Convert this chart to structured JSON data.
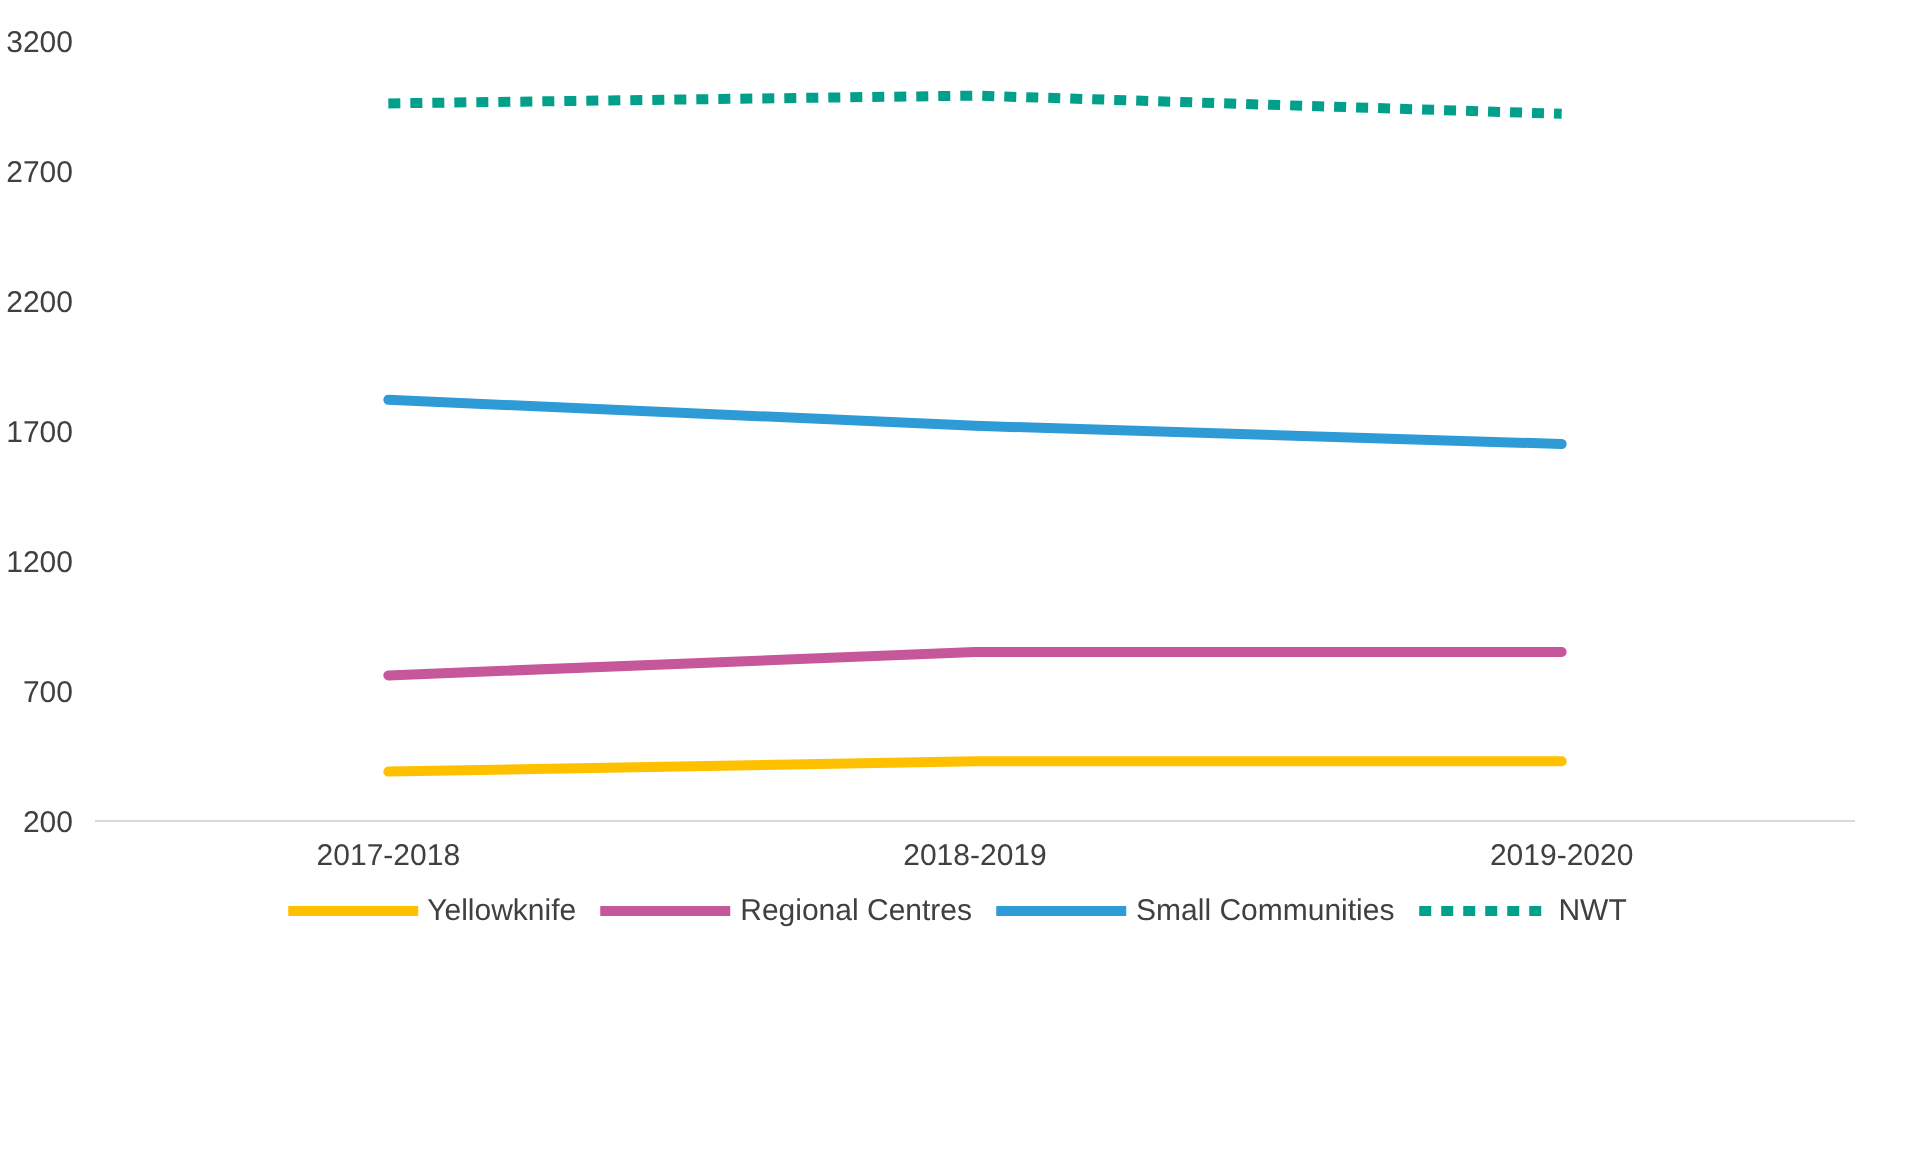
{
  "chart_data": {
    "type": "line",
    "categories": [
      "2017-2018",
      "2018-2019",
      "2019-2020"
    ],
    "series": [
      {
        "name": "Yellowknife",
        "color": "#ffc000",
        "values": [
          390,
          430,
          430
        ]
      },
      {
        "name": "Regional Centres",
        "color": "#c5579a",
        "values": [
          760,
          850,
          850
        ]
      },
      {
        "name": "Small Communities",
        "color": "#2e9ad6",
        "values": [
          1820,
          1720,
          1650
        ]
      },
      {
        "name": "NWT",
        "color": "#00a08a",
        "values": [
          2960,
          2990,
          2920
        ],
        "line_style": "dotted"
      }
    ],
    "ylim": [
      200,
      3200
    ],
    "yticks": [
      200,
      700,
      1200,
      1700,
      2200,
      2700,
      3200
    ],
    "grid": false,
    "legend": "bottom"
  }
}
